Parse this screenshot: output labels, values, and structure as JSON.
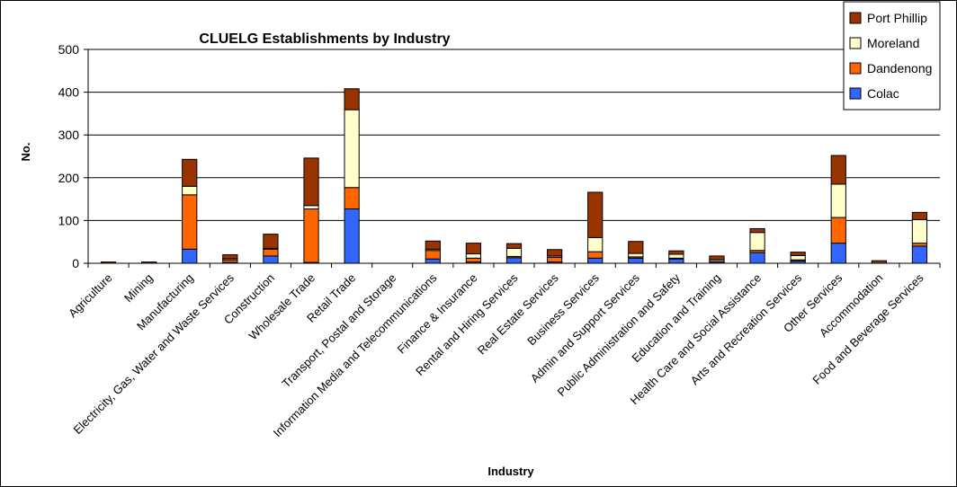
{
  "chart_data": {
    "type": "bar",
    "stacked": true,
    "title": "CLUELG Establishments by Industry",
    "xlabel": "Industry",
    "ylabel": "No.",
    "ylim": [
      0,
      500
    ],
    "yticks": [
      0,
      100,
      200,
      300,
      400,
      500
    ],
    "grid": true,
    "legend_position": "top-right",
    "categories": [
      "Agriculture",
      "Mining",
      "Manufacturing",
      "Electricity, Gas, Water and Waste Services",
      "Construction",
      "Wholesale Trade",
      "Retail Trade",
      "Transport, Postal and Storage",
      "Information Media and Telecommunications",
      "Finance & Insurance",
      "Rental and Hiring Services",
      "Real Estate Services",
      "Business Services",
      "Admin and Support Services",
      "Public Administration and Safety",
      "Education and Training",
      "Health Care and Social Assistance",
      "Arts and Recreation Services",
      "Other Services",
      "Accommodation",
      "Food and Beverage Services"
    ],
    "series": [
      {
        "name": "Colac",
        "color": "#3366ff",
        "values": [
          0,
          0,
          33,
          2,
          17,
          2,
          127,
          0,
          10,
          3,
          13,
          3,
          12,
          12,
          10,
          3,
          25,
          5,
          47,
          0,
          40
        ]
      },
      {
        "name": "Dandenong",
        "color": "#ff6600",
        "values": [
          0,
          0,
          127,
          6,
          16,
          125,
          50,
          0,
          20,
          9,
          3,
          11,
          15,
          3,
          2,
          1,
          5,
          3,
          60,
          0,
          7
        ]
      },
      {
        "name": "Moreland",
        "color": "#ffffcc",
        "values": [
          0,
          0,
          20,
          3,
          2,
          8,
          182,
          0,
          3,
          10,
          19,
          3,
          33,
          8,
          9,
          4,
          42,
          10,
          78,
          0,
          55
        ]
      },
      {
        "name": "Port Phillip",
        "color": "#993300",
        "values": [
          3,
          3,
          63,
          9,
          33,
          111,
          49,
          0,
          19,
          25,
          11,
          15,
          106,
          28,
          8,
          9,
          9,
          8,
          67,
          6,
          17
        ]
      }
    ]
  }
}
